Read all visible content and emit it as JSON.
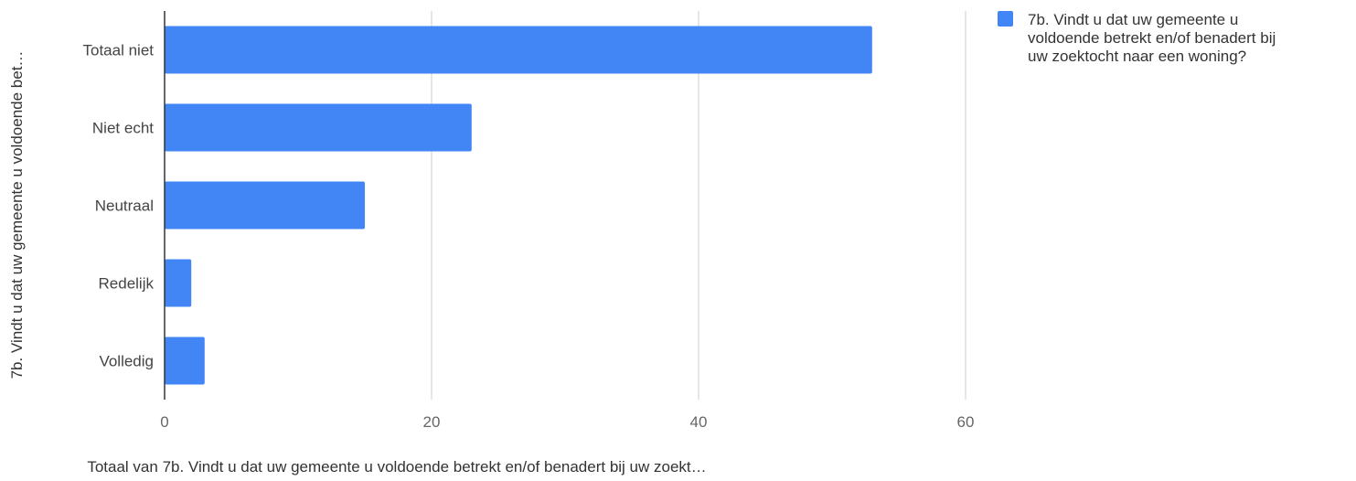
{
  "chart_data": {
    "type": "bar",
    "orientation": "horizontal",
    "categories": [
      "Totaal niet",
      "Niet echt",
      "Neutraal",
      "Redelijk",
      "Volledig"
    ],
    "series": [
      {
        "name": "7b. Vindt u dat uw gemeente u voldoende betrekt en/of benadert bij uw zoektocht naar een woning?",
        "values": [
          53,
          23,
          15,
          2,
          3
        ],
        "color": "#4285f4"
      }
    ],
    "xlim": [
      0,
      60
    ],
    "xticks": [
      "0",
      "20",
      "40",
      "60"
    ],
    "xlabel": "Totaal van 7b. Vindt u dat uw gemeente u voldoende betrekt en/of benadert bij uw zoekt…",
    "ylabel": "7b. Vindt u dat uw gemeente u voldoende bet…",
    "legend": {
      "position": "right",
      "lines": [
        "7b. Vindt u dat uw gemeente u",
        "voldoende betrekt en/of benadert bij",
        "uw zoektocht naar een woning?"
      ]
    },
    "grid": true
  }
}
